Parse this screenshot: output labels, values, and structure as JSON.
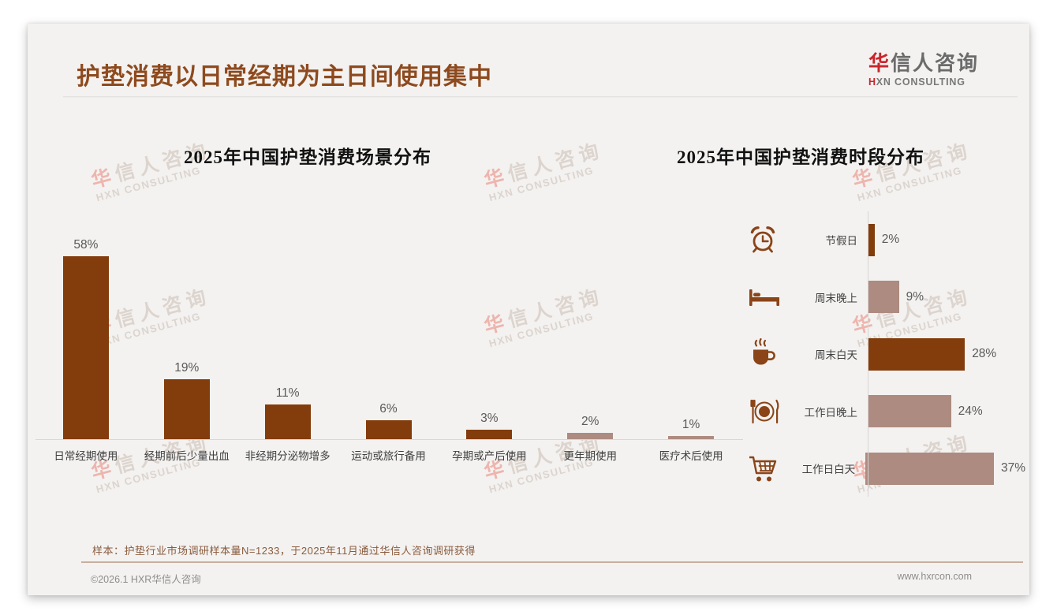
{
  "page": {
    "title": "护垫消费以日常经期为主日间使用集中",
    "logo": {
      "cn_first": "华",
      "cn_rest": "信人咨询",
      "en_first": "H",
      "en_rest": "XN CONSULTING"
    },
    "watermark": {
      "line1": "华信人咨询",
      "line2": "HXN CONSULTING"
    },
    "footnote": "样本：护垫行业市场调研样本量N=1233，于2025年11月通过华信人咨询调研获得",
    "footer": {
      "copyright": "©2026.1 HXR华信人咨询",
      "website": "www.hxrcon.com"
    }
  },
  "colors": {
    "title_brown": "#8E4A1E",
    "bar_dark": "#833C0B",
    "bar_light": "#AD8B80",
    "icon_brown": "#8A4418",
    "logo_red": "#C9252C"
  },
  "chart_data": [
    {
      "type": "bar",
      "title": "2025年中国护垫消费场景分布",
      "categories": [
        "日常经期使用",
        "经期前后少量出血",
        "非经期分泌物增多",
        "运动或旅行备用",
        "孕期或产后使用",
        "更年期使用",
        "医疗术后使用"
      ],
      "values": [
        58,
        19,
        11,
        6,
        3,
        2,
        1
      ],
      "data_labels": [
        "58%",
        "19%",
        "11%",
        "6%",
        "3%",
        "2%",
        "1%"
      ],
      "unit": "%",
      "ylim": [
        0,
        60
      ],
      "grid": false,
      "legend": "none",
      "bar_colors": [
        "dark",
        "dark",
        "dark",
        "dark",
        "dark",
        "light",
        "light"
      ]
    },
    {
      "type": "bar-horizontal",
      "title": "2025年中国护垫消费时段分布",
      "categories": [
        "节假日",
        "周末晚上",
        "周末白天",
        "工作日晚上",
        "工作日白天"
      ],
      "values": [
        2,
        9,
        28,
        24,
        37
      ],
      "data_labels": [
        "2%",
        "9%",
        "28%",
        "24%",
        "37%"
      ],
      "unit": "%",
      "xlim": [
        0,
        40
      ],
      "grid": false,
      "legend": "none",
      "bar_colors": [
        "dark",
        "light",
        "dark",
        "light",
        "light"
      ],
      "icons": [
        "alarm-clock",
        "bed",
        "coffee",
        "dining",
        "shopping-cart"
      ]
    }
  ]
}
